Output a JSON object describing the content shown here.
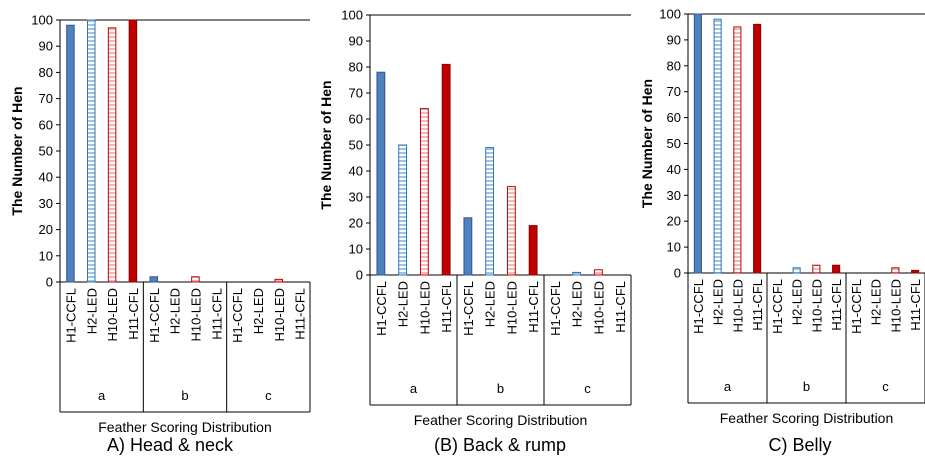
{
  "chart_data": [
    {
      "type": "bar",
      "title": "A) Head & neck",
      "xlabel": "Feather Scoring Distribution",
      "ylabel": "The Number of Hen",
      "ylim": [
        0,
        100
      ],
      "yticks": [
        "0",
        "10",
        "20",
        "30",
        "40",
        "50",
        "60",
        "70",
        "80",
        "90",
        "100"
      ],
      "groups": [
        "a",
        "b",
        "c"
      ],
      "categories": [
        "H1-CCFL",
        "H2-LED",
        "H10-LED",
        "H11-CFL"
      ],
      "values": [
        [
          98,
          100,
          97,
          100
        ],
        [
          2,
          0,
          2,
          0
        ],
        [
          0,
          0,
          1,
          0
        ]
      ],
      "grid": false
    },
    {
      "type": "bar",
      "title": "(B) Back & rump",
      "xlabel": "Feather Scoring Distribution",
      "ylabel": "The Number of Hen",
      "ylim": [
        0,
        100
      ],
      "yticks": [
        "0",
        "10",
        "20",
        "30",
        "40",
        "50",
        "60",
        "70",
        "80",
        "90",
        "100"
      ],
      "groups": [
        "a",
        "b",
        "c"
      ],
      "categories": [
        "H1-CCFL",
        "H2-LED",
        "H10-LED",
        "H11-CFL"
      ],
      "values": [
        [
          78,
          50,
          64,
          81
        ],
        [
          22,
          49,
          34,
          19
        ],
        [
          0,
          1,
          2,
          0
        ]
      ],
      "grid": false
    },
    {
      "type": "bar",
      "title": "C) Belly",
      "xlabel": "Feather Scoring Distribution",
      "ylabel": "The Number of Hen",
      "ylim": [
        0,
        100
      ],
      "yticks": [
        "0",
        "10",
        "20",
        "30",
        "40",
        "50",
        "60",
        "70",
        "80",
        "90",
        "100"
      ],
      "groups": [
        "a",
        "b",
        "c"
      ],
      "categories": [
        "H1-CCFL",
        "H2-LED",
        "H10-LED",
        "H11-CFL"
      ],
      "values": [
        [
          100,
          98,
          95,
          96
        ],
        [
          0,
          2,
          3,
          3
        ],
        [
          0,
          0,
          2,
          1
        ]
      ],
      "grid": false
    }
  ],
  "colors": {
    "h1_ccfl": "#4f81bd",
    "h2_led": "#9dc3e6",
    "h10_led": "#f2b8b8",
    "h11_cfl": "#c00000"
  }
}
